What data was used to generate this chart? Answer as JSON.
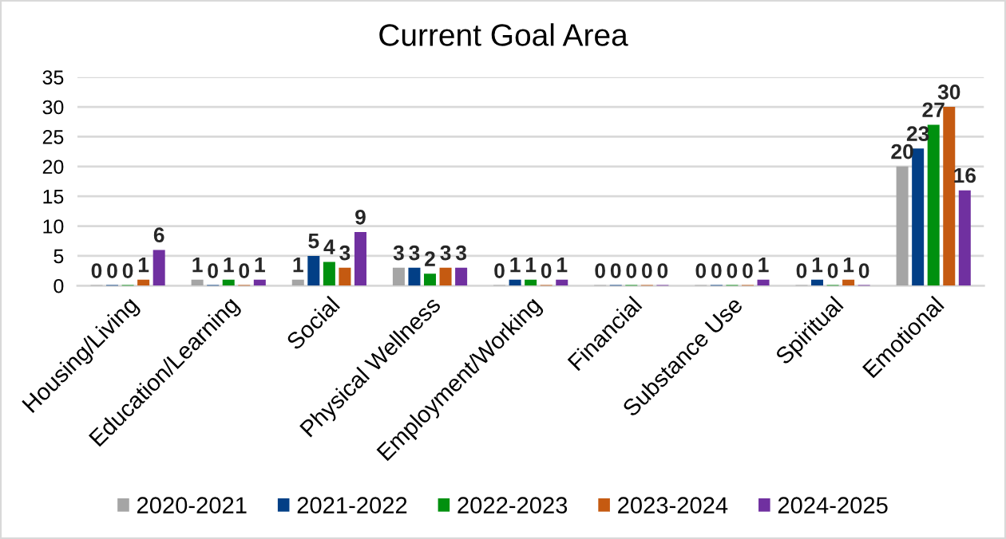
{
  "chart_data": {
    "type": "bar",
    "title": "Current Goal Area",
    "categories": [
      "Housing/Living",
      "Education/Learning",
      "Social",
      "Physical Wellness",
      "Employment/Working",
      "Financial",
      "Substance Use",
      "Spiritual",
      "Emotional"
    ],
    "series": [
      {
        "name": "2020-2021",
        "color": "#a5a5a5",
        "values": [
          0,
          1,
          1,
          3,
          0,
          0,
          0,
          0,
          20
        ]
      },
      {
        "name": "2021-2022",
        "color": "#023f86",
        "values": [
          0,
          0,
          5,
          3,
          1,
          0,
          0,
          1,
          23
        ]
      },
      {
        "name": "2022-2023",
        "color": "#00900f",
        "values": [
          0,
          1,
          4,
          2,
          1,
          0,
          0,
          0,
          27
        ]
      },
      {
        "name": "2023-2024",
        "color": "#c55a11",
        "values": [
          1,
          0,
          3,
          3,
          0,
          0,
          0,
          1,
          30
        ]
      },
      {
        "name": "2024-2025",
        "color": "#7030a0",
        "values": [
          6,
          1,
          9,
          3,
          1,
          0,
          1,
          0,
          16
        ]
      }
    ],
    "ylim": [
      0,
      35
    ],
    "yticks": [
      0,
      5,
      10,
      15,
      20,
      25,
      30,
      35
    ],
    "grid": "y",
    "legend": "bottom",
    "data_labels": true
  }
}
